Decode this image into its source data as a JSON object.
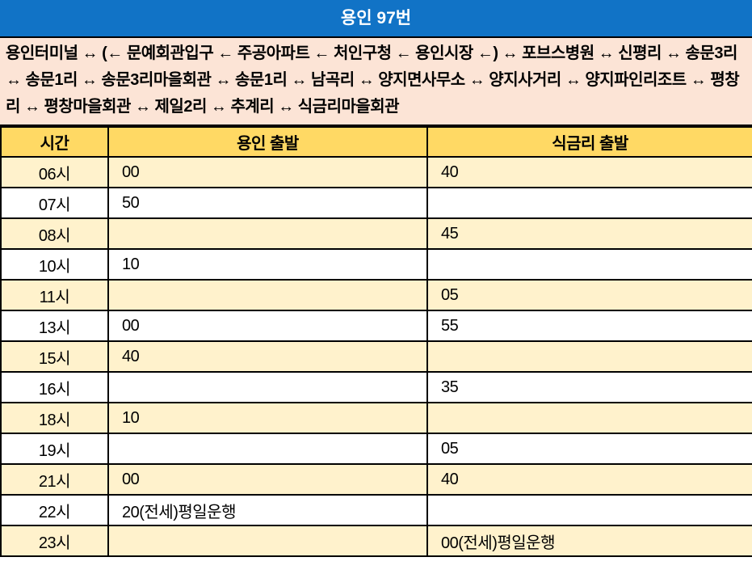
{
  "header": {
    "title": "용인 97번"
  },
  "route": {
    "description": "용인터미널 ↔ (← 문예회관입구 ← 주공아파트 ← 처인구청 ← 용인시장 ←) ↔ 포브스병원 ↔ 신평리 ↔ 송문3리 ↔ 송문1리 ↔ 송문3리마을회관 ↔ 송문1리 ↔ 남곡리 ↔ 양지면사무소 ↔ 양지사거리 ↔ 양지파인리조트 ↔ 평창리 ↔ 평창마을회관 ↔ 제일2리 ↔ 추계리 ↔ 식금리마을회관"
  },
  "table": {
    "columns": [
      "시간",
      "용인 출발",
      "식금리 출발"
    ],
    "rows": [
      {
        "time": "06시",
        "yongin_departure": "00",
        "sikgeumri_departure": "40"
      },
      {
        "time": "07시",
        "yongin_departure": "50",
        "sikgeumri_departure": ""
      },
      {
        "time": "08시",
        "yongin_departure": "",
        "sikgeumri_departure": "45"
      },
      {
        "time": "10시",
        "yongin_departure": "10",
        "sikgeumri_departure": ""
      },
      {
        "time": "11시",
        "yongin_departure": "",
        "sikgeumri_departure": "05"
      },
      {
        "time": "13시",
        "yongin_departure": "00",
        "sikgeumri_departure": "55"
      },
      {
        "time": "15시",
        "yongin_departure": "40",
        "sikgeumri_departure": ""
      },
      {
        "time": "16시",
        "yongin_departure": "",
        "sikgeumri_departure": "35"
      },
      {
        "time": "18시",
        "yongin_departure": "10",
        "sikgeumri_departure": ""
      },
      {
        "time": "19시",
        "yongin_departure": "",
        "sikgeumri_departure": "05"
      },
      {
        "time": "21시",
        "yongin_departure": "00",
        "sikgeumri_departure": "40"
      },
      {
        "time": "22시",
        "yongin_departure": "20(전세)평일운행",
        "sikgeumri_departure": ""
      },
      {
        "time": "23시",
        "yongin_departure": "",
        "sikgeumri_departure": "00(전세)평일운행"
      }
    ]
  },
  "colors": {
    "title_bar_blue": "#1173C6",
    "route_background_pink": "#FCE4D6",
    "table_header_gold": "#FFD964",
    "row_stripe_cream": "#FFF2CC",
    "row_stripe_white": "#FFFFFF",
    "border_black": "#000000",
    "title_text_white": "#FFFFFF",
    "body_text_black": "#000000"
  }
}
